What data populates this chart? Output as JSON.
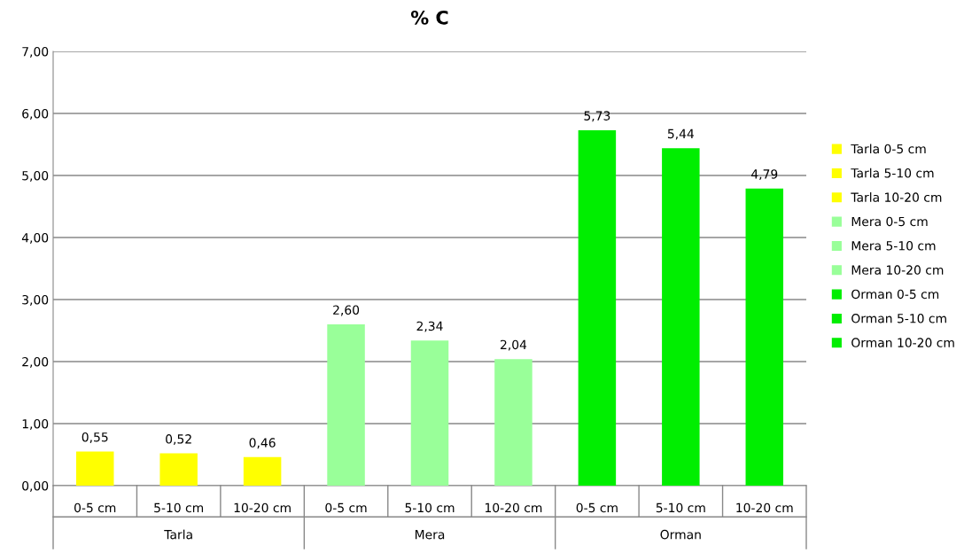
{
  "chart_data": {
    "type": "bar",
    "title": "% C",
    "categories": [
      "0-5 cm",
      "5-10 cm",
      "10-20 cm",
      "0-5 cm",
      "5-10 cm",
      "10-20 cm",
      "0-5 cm",
      "5-10 cm",
      "10-20 cm"
    ],
    "annotations": [
      "Tarla",
      "Mera",
      "Orman"
    ],
    "series": [
      {
        "name": "Tarla 0-5 cm",
        "color": "#ffff00",
        "values": [
          0.55,
          null,
          null,
          null,
          null,
          null,
          null,
          null,
          null
        ],
        "value_labels": [
          "0,55",
          null,
          null,
          null,
          null,
          null,
          null,
          null,
          null
        ]
      },
      {
        "name": "Tarla 5-10 cm",
        "color": "#ffff00",
        "values": [
          null,
          0.52,
          null,
          null,
          null,
          null,
          null,
          null,
          null
        ],
        "value_labels": [
          null,
          "0,52",
          null,
          null,
          null,
          null,
          null,
          null,
          null
        ]
      },
      {
        "name": "Tarla 10-20 cm",
        "color": "#ffff00",
        "values": [
          null,
          null,
          0.46,
          null,
          null,
          null,
          null,
          null,
          null
        ],
        "value_labels": [
          null,
          null,
          "0,46",
          null,
          null,
          null,
          null,
          null,
          null
        ]
      },
      {
        "name": "Mera 0-5 cm",
        "color": "#99ff99",
        "values": [
          null,
          null,
          null,
          2.6,
          null,
          null,
          null,
          null,
          null
        ],
        "value_labels": [
          null,
          null,
          null,
          "2,60",
          null,
          null,
          null,
          null,
          null
        ]
      },
      {
        "name": "Mera 5-10 cm",
        "color": "#99ff99",
        "values": [
          null,
          null,
          null,
          null,
          2.34,
          null,
          null,
          null,
          null
        ],
        "value_labels": [
          null,
          null,
          null,
          null,
          "2,34",
          null,
          null,
          null,
          null
        ]
      },
      {
        "name": "Mera 10-20 cm",
        "color": "#99ff99",
        "values": [
          null,
          null,
          null,
          null,
          null,
          2.04,
          null,
          null,
          null
        ],
        "value_labels": [
          null,
          null,
          null,
          null,
          null,
          "2,04",
          null,
          null,
          null
        ]
      },
      {
        "name": "Orman 0-5 cm",
        "color": "#00ee00",
        "values": [
          null,
          null,
          null,
          null,
          null,
          null,
          5.73,
          null,
          null
        ],
        "value_labels": [
          null,
          null,
          null,
          null,
          null,
          null,
          "5,73",
          null,
          null
        ]
      },
      {
        "name": "Orman 5-10 cm",
        "color": "#00ee00",
        "values": [
          null,
          null,
          null,
          null,
          null,
          null,
          null,
          5.44,
          null
        ],
        "value_labels": [
          null,
          null,
          null,
          null,
          null,
          null,
          null,
          "5,44",
          null
        ]
      },
      {
        "name": "Orman 10-20 cm",
        "color": "#00ee00",
        "values": [
          null,
          null,
          null,
          null,
          null,
          null,
          null,
          null,
          4.79
        ],
        "value_labels": [
          null,
          null,
          null,
          null,
          null,
          null,
          null,
          null,
          "4,79"
        ]
      }
    ],
    "ylim": [
      0,
      7
    ],
    "yticks": [
      {
        "value": 0,
        "label": "0,00"
      },
      {
        "value": 1,
        "label": "1,00"
      },
      {
        "value": 2,
        "label": "2,00"
      },
      {
        "value": 3,
        "label": "3,00"
      },
      {
        "value": 4,
        "label": "4,00"
      },
      {
        "value": 5,
        "label": "5,00"
      },
      {
        "value": 6,
        "label": "6,00"
      },
      {
        "value": 7,
        "label": "7,00"
      }
    ],
    "grid": "y",
    "legend": "right"
  }
}
